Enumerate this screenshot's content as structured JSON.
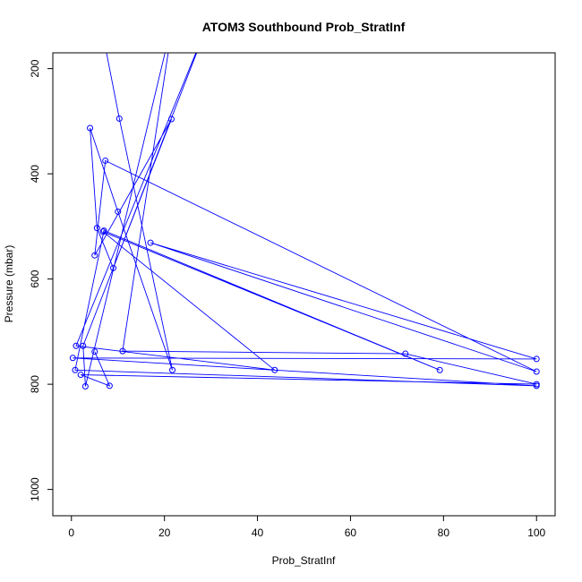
{
  "chart_data": {
    "type": "line",
    "title": "ATOM3 Southbound Prob_StratInf",
    "xlabel": "Prob_StratInf",
    "ylabel": "Pressure (mbar)",
    "xlim": [
      -4,
      104
    ],
    "ylim": [
      1050,
      170
    ],
    "y_reversed": true,
    "xticks": [
      "0",
      "20",
      "40",
      "60",
      "80",
      "100"
    ],
    "yticks": [
      "200",
      "400",
      "600",
      "800",
      "1000"
    ],
    "grid": false,
    "legend": "none",
    "series": [
      {
        "color": "#0000ff",
        "marker": "open-circle",
        "points": [
          [
            1.5,
            100
          ],
          [
            3,
            100
          ],
          [
            6,
            100
          ],
          [
            10.3,
            295
          ],
          [
            21.7,
            773
          ],
          [
            10,
            472
          ],
          [
            4,
            313
          ],
          [
            5.5,
            503
          ],
          [
            9,
            579
          ],
          [
            21.5,
            296
          ],
          [
            5,
            555
          ],
          [
            7.3,
            375
          ],
          [
            100,
            776
          ],
          [
            17,
            531
          ],
          [
            100,
            752
          ],
          [
            0.3,
            750
          ],
          [
            100,
            803
          ],
          [
            0.8,
            773
          ],
          [
            7,
            508
          ],
          [
            79.2,
            773
          ],
          [
            6.8,
            510
          ],
          [
            43.7,
            773
          ],
          [
            1,
            727
          ],
          [
            30,
            100
          ],
          [
            2.5,
            727
          ],
          [
            3,
            804
          ],
          [
            22,
            100
          ],
          [
            11,
            737
          ],
          [
            71.8,
            742
          ],
          [
            100,
            800
          ],
          [
            2,
            782
          ],
          [
            8.2,
            803
          ],
          [
            5,
            738
          ]
        ]
      }
    ]
  }
}
